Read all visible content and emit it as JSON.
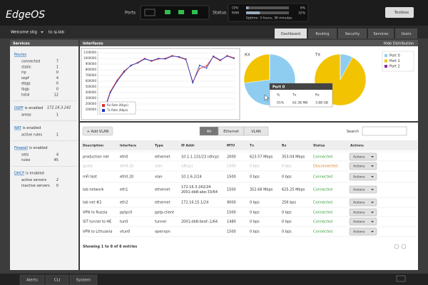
{
  "header": {
    "logo": "EdgeOS",
    "ports_label": "Ports",
    "status_label": "Status",
    "cpu": {
      "label": "CPU",
      "value": 6,
      "value_label": "6%"
    },
    "ram": {
      "label": "RAM",
      "value": 32,
      "value_label": "32%"
    },
    "uptime": "Uptime: 3 hours, 36 minutes",
    "toolbox": "Toolbox"
  },
  "nav": {
    "welcome": "Welcome stig",
    "host": "to sj-lab",
    "tabs": [
      "Dashboard",
      "Routing",
      "Security",
      "Services",
      "Users"
    ],
    "active_tab": 0
  },
  "services": {
    "title": "Services",
    "sections": [
      {
        "heading": "Routes",
        "rows": [
          [
            "connected",
            7
          ],
          [
            "static",
            1
          ],
          [
            "rip",
            0
          ],
          [
            "ospf",
            4
          ],
          [
            "ebgp",
            0
          ],
          [
            "ibgp",
            0
          ],
          [
            "total",
            12
          ]
        ]
      },
      {
        "heading": "OSPF",
        "status": "is enabled",
        "address": "172.16.3.242",
        "rows": [
          [
            "areas",
            1
          ]
        ]
      },
      {
        "heading": "NAT",
        "status": "is enabled",
        "rows": [
          [
            "active rules",
            1
          ]
        ]
      },
      {
        "heading": "Firewall",
        "status": "is enabled",
        "rows": [
          [
            "sets",
            4
          ],
          [
            "rules",
            45
          ]
        ]
      },
      {
        "heading": "DHCP",
        "status": "is enabled",
        "rows": [
          [
            "active servers",
            2
          ],
          [
            "inactive servers",
            0
          ]
        ]
      }
    ]
  },
  "interfaces": {
    "title": "Interfaces",
    "hide_distribution": "Hide Distribution",
    "tooltip": {
      "title": "Port 0",
      "headers": [
        "%",
        "Tx",
        "Rx"
      ],
      "values": [
        "01%",
        "62.38 MB",
        "3.88 GB"
      ]
    },
    "toolbar": {
      "add": "+ Add VLAN",
      "filters": [
        "All",
        "Ethernet",
        "VLAN"
      ],
      "active_filter": 0,
      "search": "Search"
    },
    "table": {
      "headers": [
        "Description",
        "Interface",
        "Type",
        "IP Addr",
        "MTU",
        "Tx",
        "Rx",
        "Status",
        "Actions"
      ],
      "action_button": "Actions",
      "rows": [
        {
          "cells": [
            "production net",
            "eth0",
            "ethernet",
            "10.1.1.131/23 (dhcp)",
            2000,
            "623.57 Mbps",
            "353.04 Mbps",
            "Connected"
          ],
          "status_color": "#3a9a3a",
          "text_color": "#333333"
        },
        {
          "cells": [
            "guest",
            "eth0.10",
            "vlan",
            "(dhcp)",
            1500,
            "0 bps",
            "0 bps",
            "Disconnected"
          ],
          "status_color": "#e08020",
          "text_color": "#bbbbbb"
        },
        {
          "cells": [
            "mFi test",
            "eth0.20",
            "vlan",
            "10.1.6.2/24",
            1500,
            "0 bps",
            "0 bps",
            "Connected"
          ],
          "status_color": "#3a9a3a",
          "text_color": "#333333"
        },
        {
          "cells": [
            "lab network",
            "eth1",
            "ethernet",
            [
              "172.16.3.242/24",
              "2001:db8:abe:33/64"
            ],
            1500,
            "352.68 Mbps",
            "625.25 Mbps",
            "Connected"
          ],
          "status_color": "#3a9a3a",
          "text_color": "#333333"
        },
        {
          "cells": [
            "lab net #2",
            "eth2",
            "ethernet",
            "172.16.15.1/24",
            9000,
            "0 bps",
            "256 bps",
            "Connected"
          ],
          "status_color": "#3a9a3a",
          "text_color": "#333333"
        },
        {
          "cells": [
            "VPN to Russia",
            "pptpc0",
            "pptp-client",
            null,
            1500,
            "0 bps",
            "0 bps",
            "Connected"
          ],
          "status_color": "#3a9a3a",
          "text_color": "#333333"
        },
        {
          "cells": [
            "SIT tunnel to HE",
            "tun0",
            "tunnel",
            "2001:db8:beaf::1/64",
            1480,
            "0 bps",
            "0 bps",
            "Connected"
          ],
          "status_color": "#3a9a3a",
          "text_color": "#333333"
        },
        {
          "cells": [
            "VPN to Lithuania",
            "vtun0",
            "openvpn",
            null,
            1500,
            "0 bps",
            "0 bps",
            "Connected"
          ],
          "status_color": "#3a9a3a",
          "text_color": "#333333"
        }
      ],
      "footer": "Showing 1 to 8 of 8 entries"
    }
  },
  "footer": {
    "tabs": [
      "Alerts",
      "CLI",
      "System"
    ]
  },
  "chart_data": [
    {
      "type": "line",
      "categories": [
        null,
        null,
        null,
        null,
        null,
        null,
        null,
        null,
        null,
        null,
        null,
        null,
        null,
        null,
        null,
        null,
        null,
        null,
        null,
        null
      ],
      "series": [
        {
          "name": "Rx Rate (Kbps)",
          "color": "#e03030",
          "values": [
            60000,
            420000,
            620000,
            780000,
            870000,
            930000,
            1000000,
            950000,
            990000,
            1000000,
            1050000,
            1020000,
            980000,
            590000,
            820000,
            870000,
            1030000,
            960000,
            1050000,
            1010000
          ]
        },
        {
          "name": "Tx Rate (Kbps)",
          "color": "#2030c0",
          "values": [
            40000,
            400000,
            600000,
            760000,
            880000,
            920000,
            990000,
            960000,
            1000000,
            990000,
            1040000,
            1030000,
            990000,
            570000,
            880000,
            830000,
            1040000,
            970000,
            1040000,
            1000000
          ]
        }
      ],
      "ylim": [
        0,
        1100000
      ],
      "yticks": [
        100000,
        200000,
        300000,
        400000,
        500000,
        600000,
        700000,
        800000,
        900000,
        1000000,
        1100000
      ],
      "grid": true
    },
    {
      "type": "pie",
      "categories": [
        "Port 0",
        "Port 1",
        "Port 2"
      ],
      "colors": [
        "#8ecdf0",
        "#f2c300",
        "#8b2aa8"
      ],
      "series": [
        {
          "name": "RX",
          "values": [
            73,
            27,
            0
          ]
        },
        {
          "name": "TX",
          "values": [
            8,
            92,
            0
          ]
        }
      ]
    }
  ]
}
